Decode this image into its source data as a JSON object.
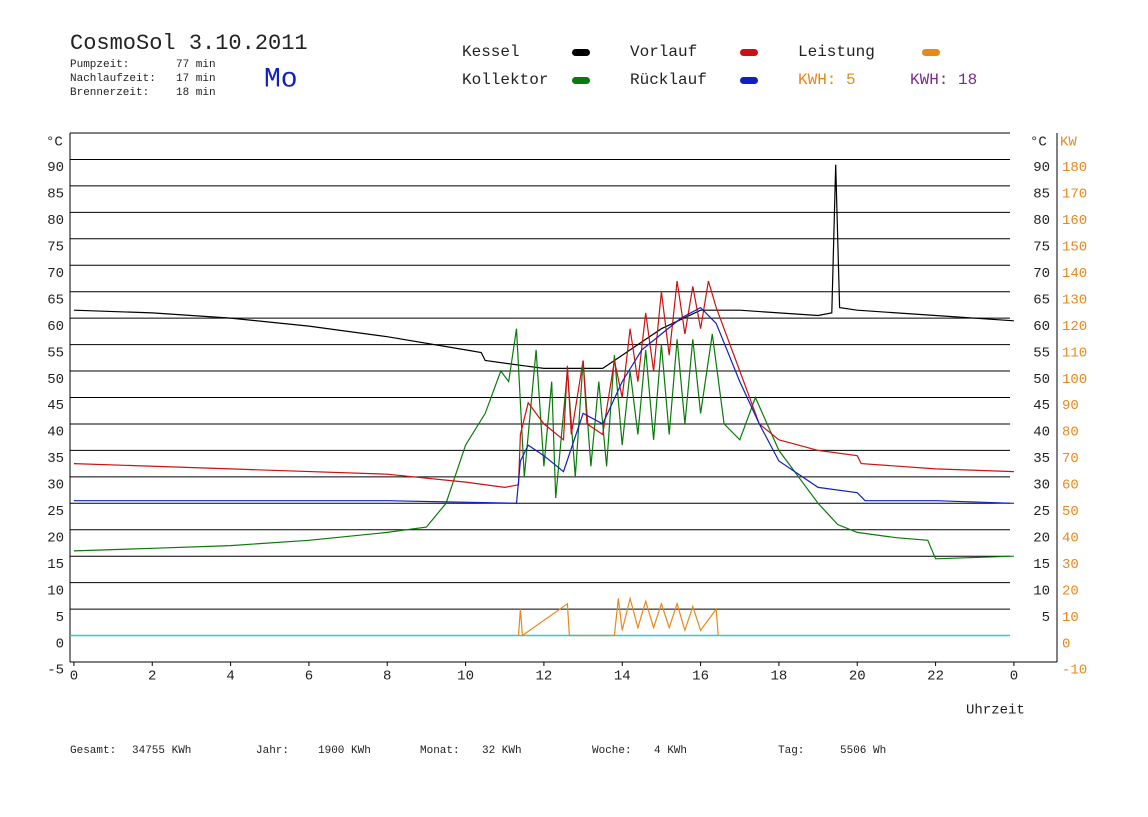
{
  "chart_data": {
    "type": "line",
    "title": "CosmoSol 3.10.2011",
    "weekday": "Mo",
    "info": [
      {
        "label": "Pumpzeit:",
        "value": "77 min"
      },
      {
        "label": "Nachlaufzeit:",
        "value": "17 min"
      },
      {
        "label": "Brennerzeit:",
        "value": "18 min"
      }
    ],
    "energy_labels": [
      {
        "text": "KWH: 5",
        "color": "#e8881a"
      },
      {
        "text": "KWH: 18",
        "color": "#7a2a90"
      }
    ],
    "y_label": "°C",
    "y2_label": "KW",
    "x_label": "Uhrzeit",
    "xlim": [
      -0.1,
      25.1
    ],
    "xticks": [
      0,
      2,
      4,
      6,
      8,
      10,
      12,
      14,
      16,
      18,
      20,
      22,
      {
        "value": 24,
        "label": "0"
      }
    ],
    "ylim": [
      -5,
      95
    ],
    "yticks": [
      -5,
      0,
      5,
      10,
      15,
      20,
      25,
      30,
      35,
      40,
      45,
      50,
      55,
      60,
      65,
      70,
      75,
      80,
      85,
      90
    ],
    "y2lim": [
      -10,
      190
    ],
    "y2ticks": [
      -10,
      0,
      10,
      20,
      30,
      40,
      50,
      60,
      70,
      80,
      90,
      100,
      110,
      120,
      130,
      140,
      150,
      160,
      170,
      180
    ],
    "grid": true,
    "series": [
      {
        "name": "Kessel",
        "color": "#000000",
        "x": [
          0,
          2,
          4,
          6,
          8,
          10,
          10.4,
          10.5,
          11.5,
          12,
          13,
          13.5,
          14,
          15,
          16,
          17,
          18,
          19,
          19.35,
          19.45,
          19.55,
          20,
          22,
          24
        ],
        "values": [
          61.5,
          61,
          60,
          58.5,
          56.5,
          54,
          53.5,
          52,
          51,
          50.5,
          50.5,
          50.5,
          53,
          58,
          61.5,
          61.5,
          61,
          60.5,
          61,
          89,
          62,
          61.5,
          60.5,
          59.5
        ]
      },
      {
        "name": "Kollektor",
        "color": "#0a7a0a",
        "x": [
          0,
          2,
          4,
          6,
          8,
          9,
          9.5,
          10,
          10.5,
          10.9,
          11.1,
          11.3,
          11.5,
          11.8,
          12,
          12.2,
          12.3,
          12.6,
          12.8,
          13,
          13.2,
          13.4,
          13.6,
          13.8,
          14,
          14.2,
          14.4,
          14.6,
          14.8,
          15,
          15.2,
          15.4,
          15.6,
          15.8,
          16,
          16.3,
          16.6,
          17,
          17.4,
          18,
          19,
          19.5,
          20,
          21,
          21.8,
          22,
          24
        ],
        "values": [
          16,
          16.5,
          17,
          18,
          19.5,
          20.5,
          25,
          36,
          42,
          50,
          48,
          58,
          30,
          54,
          32,
          48,
          26,
          50,
          30,
          52,
          32,
          48,
          32,
          53,
          36,
          50,
          38,
          54,
          37,
          55,
          38,
          56,
          40,
          56,
          42,
          57,
          40,
          37,
          45,
          35,
          25,
          21,
          19.5,
          18.5,
          18,
          14.5,
          15
        ]
      },
      {
        "name": "Vorlauf",
        "color": "#cc1111",
        "x": [
          0,
          4,
          8,
          10,
          11,
          11.35,
          11.4,
          11.6,
          12,
          12.5,
          12.6,
          12.7,
          13,
          13.1,
          13.5,
          13.8,
          14,
          14.2,
          14.4,
          14.6,
          14.8,
          15,
          15.2,
          15.4,
          15.6,
          15.8,
          16,
          16.2,
          16.4,
          17,
          17.5,
          18,
          19,
          20,
          20.1,
          22,
          24
        ],
        "values": [
          32.5,
          31.5,
          30.5,
          29,
          28,
          28.5,
          38,
          44,
          40,
          37,
          51,
          38,
          52,
          40,
          38,
          52,
          45,
          58,
          48,
          61,
          50,
          65,
          53,
          67,
          57,
          66,
          58,
          67,
          62,
          50,
          40,
          37,
          35,
          34,
          32.5,
          31.5,
          31
        ]
      },
      {
        "name": "Rücklauf",
        "color": "#1020c0",
        "x": [
          0,
          8,
          11.3,
          11.4,
          11.6,
          12,
          12.5,
          13,
          13.5,
          14,
          14.5,
          15,
          15.5,
          16,
          16.4,
          17,
          17.5,
          18,
          19,
          20,
          20.2,
          22,
          24
        ],
        "values": [
          25.5,
          25.5,
          25,
          33,
          36,
          34,
          31,
          42,
          40,
          48,
          54,
          57,
          60,
          62,
          59,
          48,
          40,
          33,
          28,
          27,
          25.5,
          25.5,
          25
        ]
      },
      {
        "name": "Leistung",
        "color": "#e8881a",
        "axis": "y2",
        "x": [
          11.35,
          11.4,
          11.45,
          12.6,
          12.65,
          13.8,
          13.9,
          14,
          14.2,
          14.4,
          14.6,
          14.8,
          15,
          15.2,
          15.4,
          15.6,
          15.8,
          16,
          16.4,
          16.45
        ],
        "values": [
          0,
          10,
          0,
          12,
          0,
          0,
          14,
          2,
          14,
          3,
          13,
          3,
          12,
          3,
          12,
          2,
          11,
          2,
          10,
          0
        ]
      }
    ],
    "totals": [
      {
        "label": "Gesamt:",
        "value": "34755 KWh"
      },
      {
        "label": "Jahr:",
        "value": "1900 KWh"
      },
      {
        "label": "Monat:",
        "value": "32 KWh"
      },
      {
        "label": "Woche:",
        "value": "4 KWh"
      },
      {
        "label": "Tag:",
        "value": "5506 Wh"
      }
    ]
  }
}
